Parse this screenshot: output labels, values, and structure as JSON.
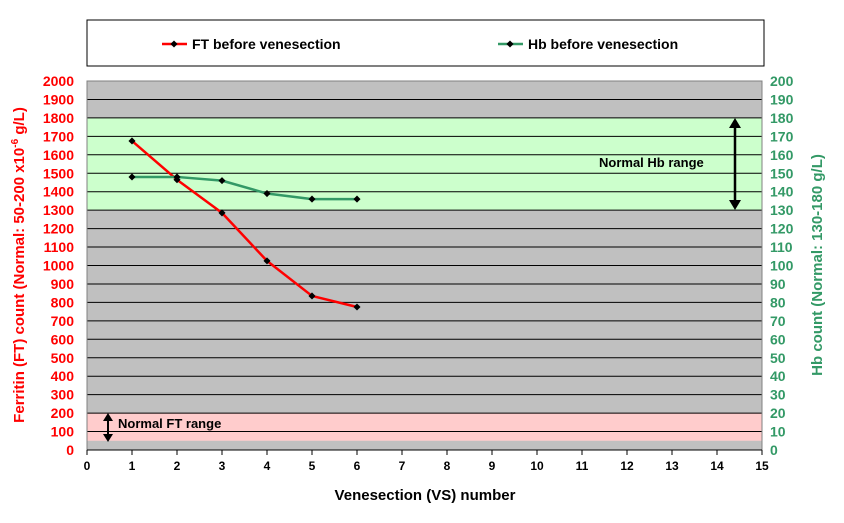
{
  "chart_data": {
    "type": "line",
    "title": "",
    "xlabel": "Venesection (VS) number",
    "ylabel_left": {
      "prefix": "Ferritin (FT) count (Normal: 50-200 x10",
      "superscript": "-6",
      "suffix": " g/L)"
    },
    "ylabel_right": "Hb count (Normal: 130-180 g/L)",
    "xlim": [
      0,
      15
    ],
    "ylim_left": [
      0,
      2000
    ],
    "ylim_right": [
      0,
      200
    ],
    "x_ticks": [
      0,
      1,
      2,
      3,
      4,
      5,
      6,
      7,
      8,
      9,
      10,
      11,
      12,
      13,
      14,
      15
    ],
    "y_ticks_left": [
      0,
      100,
      200,
      300,
      400,
      500,
      600,
      700,
      800,
      900,
      1000,
      1100,
      1200,
      1300,
      1400,
      1500,
      1600,
      1700,
      1800,
      1900,
      2000
    ],
    "y_ticks_right": [
      0,
      10,
      20,
      30,
      40,
      50,
      60,
      70,
      80,
      90,
      100,
      110,
      120,
      130,
      140,
      150,
      160,
      170,
      180,
      190,
      200
    ],
    "grid": true,
    "legend_position": "top",
    "series": [
      {
        "name": "FT before venesection",
        "axis": "left",
        "color": "#ff0000",
        "x": [
          1,
          2,
          3,
          4,
          5,
          6
        ],
        "values": [
          1675,
          1465,
          1285,
          1025,
          835,
          775
        ]
      },
      {
        "name": "Hb before venesection",
        "axis": "right",
        "color": "#339966",
        "x": [
          1,
          2,
          3,
          4,
          5,
          6
        ],
        "values": [
          148,
          148,
          146,
          139,
          136,
          136
        ]
      }
    ],
    "bands": [
      {
        "label": "Normal Hb range",
        "axis": "right",
        "from": 130,
        "to": 180,
        "color": "#ccffcc"
      },
      {
        "label": "Normal FT range",
        "axis": "left",
        "from": 50,
        "to": 200,
        "color": "#ffcccc"
      }
    ],
    "colors": {
      "plot_background": "#c0c0c0",
      "left_axis": "#ff0000",
      "right_axis": "#339966",
      "marker": "#000000"
    }
  }
}
